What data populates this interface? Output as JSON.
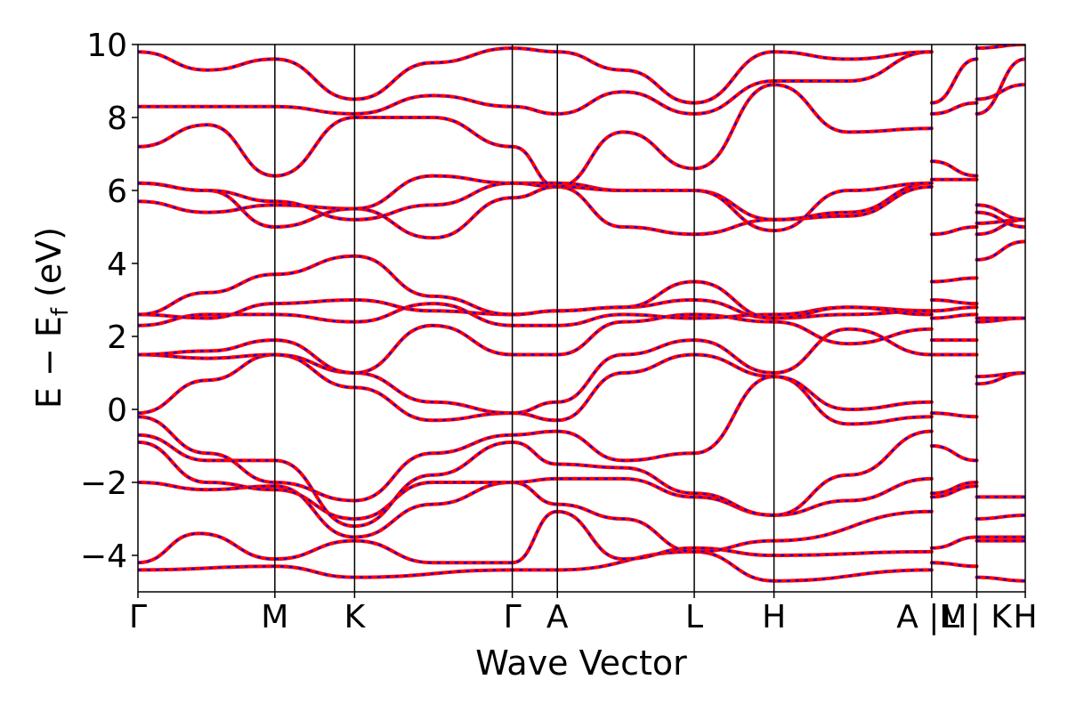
{
  "chart_data": {
    "type": "line",
    "xlabel": "Wave Vector",
    "ylabel": "E − E_f (eV)",
    "ylabel_parts": {
      "main": "E − E",
      "sub": "f",
      "unit": " (eV)"
    },
    "ylim": [
      -5,
      10
    ],
    "y_ticks": [
      {
        "value": 10,
        "label": "10"
      },
      {
        "value": 8,
        "label": "8"
      },
      {
        "value": 6,
        "label": "6"
      },
      {
        "value": 4,
        "label": "4"
      },
      {
        "value": 2,
        "label": "2"
      },
      {
        "value": 0,
        "label": "0"
      },
      {
        "value": -2,
        "label": "−2"
      },
      {
        "value": -4,
        "label": "−4"
      }
    ],
    "xlim": [
      0,
      5.12
    ],
    "kpoints": [
      {
        "label": "Γ",
        "x": 0.0
      },
      {
        "label": "M",
        "x": 0.79
      },
      {
        "label": "K",
        "x": 1.25
      },
      {
        "label": "Γ",
        "x": 2.16
      },
      {
        "label": "A",
        "x": 2.42
      },
      {
        "label": "L",
        "x": 3.21
      },
      {
        "label": "H",
        "x": 3.67
      },
      {
        "label": "A |M",
        "x": 4.58
      },
      {
        "label": "L | K",
        "x": 4.84
      },
      {
        "label": "H",
        "x": 5.12
      }
    ],
    "segments": [
      [
        0,
        0.79
      ],
      [
        0.79,
        1.25
      ],
      [
        1.25,
        2.16
      ],
      [
        2.16,
        2.42
      ],
      [
        2.42,
        3.21
      ],
      [
        3.21,
        3.67
      ],
      [
        3.67,
        4.58
      ],
      [
        4.58,
        4.84
      ],
      [
        4.84,
        5.12
      ]
    ],
    "series": [
      {
        "color": "#ff0000",
        "style": "solid"
      },
      {
        "color": "#0000ff",
        "style": "dashed"
      }
    ],
    "bands": [
      [
        [
          0,
          -4.4
        ],
        [
          0.79,
          -4.3
        ],
        [
          1.25,
          -4.6
        ],
        [
          2.16,
          -4.4
        ],
        [
          2.42,
          -4.4
        ],
        [
          3.21,
          -3.9
        ],
        [
          3.67,
          -4.7
        ],
        [
          4.58,
          -4.4
        ],
        [
          4.58,
          -4.2
        ],
        [
          4.84,
          -4.3
        ],
        [
          4.84,
          -4.6
        ],
        [
          5.12,
          -4.7
        ]
      ],
      [
        [
          0,
          -4.2
        ],
        [
          0.35,
          -3.4
        ],
        [
          0.79,
          -4.1
        ],
        [
          1.25,
          -3.6
        ],
        [
          1.7,
          -4.2
        ],
        [
          2.16,
          -4.2
        ],
        [
          2.42,
          -2.8
        ],
        [
          2.8,
          -4.1
        ],
        [
          3.21,
          -3.8
        ],
        [
          3.67,
          -4.0
        ],
        [
          4.58,
          -3.9
        ],
        [
          4.58,
          -3.8
        ],
        [
          4.84,
          -3.5
        ],
        [
          4.84,
          -3.6
        ],
        [
          5.12,
          -3.6
        ]
      ],
      [
        [
          0,
          -2.0
        ],
        [
          0.4,
          -2.2
        ],
        [
          0.79,
          -2.1
        ],
        [
          1.25,
          -3.5
        ],
        [
          1.7,
          -2.6
        ],
        [
          2.16,
          -2.0
        ],
        [
          2.42,
          -2.6
        ],
        [
          2.8,
          -3.0
        ],
        [
          3.21,
          -3.9
        ],
        [
          3.67,
          -3.6
        ],
        [
          4.58,
          -2.8
        ],
        [
          4.58,
          -2.4
        ],
        [
          4.84,
          -2.1
        ],
        [
          4.84,
          -3.5
        ],
        [
          5.12,
          -3.5
        ]
      ],
      [
        [
          0,
          -0.9
        ],
        [
          0.4,
          -2.0
        ],
        [
          0.79,
          -2.2
        ],
        [
          1.25,
          -3.0
        ],
        [
          1.7,
          -2.0
        ],
        [
          2.16,
          -2.0
        ],
        [
          2.42,
          -1.9
        ],
        [
          2.8,
          -1.9
        ],
        [
          3.21,
          -2.4
        ],
        [
          3.67,
          -2.9
        ],
        [
          4.1,
          -2.5
        ],
        [
          4.58,
          -1.9
        ],
        [
          4.58,
          -2.3
        ],
        [
          4.84,
          -2.0
        ],
        [
          4.84,
          -3.0
        ],
        [
          5.12,
          -2.9
        ]
      ],
      [
        [
          0,
          -0.7
        ],
        [
          0.4,
          -1.4
        ],
        [
          0.79,
          -1.4
        ],
        [
          1.25,
          -3.2
        ],
        [
          1.7,
          -1.8
        ],
        [
          2.16,
          -0.9
        ],
        [
          2.42,
          -1.5
        ],
        [
          2.8,
          -1.6
        ],
        [
          3.21,
          -2.3
        ],
        [
          3.67,
          -2.9
        ],
        [
          4.1,
          -1.8
        ],
        [
          4.58,
          -0.6
        ],
        [
          4.58,
          -1.0
        ],
        [
          4.84,
          -1.4
        ],
        [
          4.84,
          -2.4
        ],
        [
          5.12,
          -2.4
        ]
      ],
      [
        [
          0,
          -0.2
        ],
        [
          0.4,
          -1.2
        ],
        [
          0.79,
          -2.0
        ],
        [
          1.25,
          -2.5
        ],
        [
          1.7,
          -1.2
        ],
        [
          2.16,
          -0.7
        ],
        [
          2.42,
          -0.6
        ],
        [
          2.8,
          -1.4
        ],
        [
          3.21,
          -1.2
        ],
        [
          3.67,
          0.9
        ],
        [
          4.1,
          -0.4
        ],
        [
          4.58,
          -0.2
        ],
        [
          4.58,
          -0.1
        ],
        [
          4.84,
          -0.2
        ],
        [
          4.84,
          0.7
        ],
        [
          5.12,
          1.0
        ]
      ],
      [
        [
          0,
          -0.1
        ],
        [
          0.4,
          0.8
        ],
        [
          0.79,
          1.5
        ],
        [
          1.25,
          0.6
        ],
        [
          1.7,
          -0.3
        ],
        [
          2.16,
          -0.1
        ],
        [
          2.42,
          -0.3
        ],
        [
          2.8,
          1.0
        ],
        [
          3.21,
          1.5
        ],
        [
          3.67,
          0.9
        ],
        [
          4.1,
          0.0
        ],
        [
          4.58,
          0.2
        ],
        [
          4.58,
          1.5
        ],
        [
          4.84,
          1.5
        ],
        [
          4.84,
          0.9
        ],
        [
          5.12,
          1.0
        ]
      ],
      [
        [
          0,
          1.5
        ],
        [
          0.4,
          1.4
        ],
        [
          0.79,
          1.5
        ],
        [
          1.25,
          1.0
        ],
        [
          1.7,
          0.2
        ],
        [
          2.16,
          -0.1
        ],
        [
          2.42,
          0.2
        ],
        [
          2.8,
          1.5
        ],
        [
          3.21,
          1.9
        ],
        [
          3.67,
          1.0
        ],
        [
          4.1,
          2.2
        ],
        [
          4.58,
          1.5
        ],
        [
          4.58,
          1.9
        ],
        [
          4.84,
          1.9
        ],
        [
          4.84,
          2.4
        ],
        [
          5.12,
          2.5
        ]
      ],
      [
        [
          0,
          1.5
        ],
        [
          0.4,
          1.6
        ],
        [
          0.79,
          1.9
        ],
        [
          1.25,
          1.0
        ],
        [
          1.7,
          2.3
        ],
        [
          2.16,
          1.5
        ],
        [
          2.42,
          1.5
        ],
        [
          2.8,
          2.4
        ],
        [
          3.21,
          2.6
        ],
        [
          3.67,
          2.4
        ],
        [
          4.1,
          1.8
        ],
        [
          4.58,
          2.2
        ],
        [
          4.58,
          2.5
        ],
        [
          4.84,
          2.6
        ],
        [
          4.84,
          2.5
        ],
        [
          5.12,
          2.5
        ]
      ],
      [
        [
          0,
          2.3
        ],
        [
          0.4,
          2.6
        ],
        [
          0.79,
          2.6
        ],
        [
          1.25,
          2.4
        ],
        [
          1.7,
          2.9
        ],
        [
          2.16,
          2.3
        ],
        [
          2.42,
          2.3
        ],
        [
          2.8,
          2.6
        ],
        [
          3.21,
          2.5
        ],
        [
          3.67,
          2.6
        ],
        [
          4.1,
          2.8
        ],
        [
          4.58,
          2.7
        ],
        [
          4.58,
          2.7
        ],
        [
          4.84,
          2.8
        ],
        [
          4.84,
          4.1
        ],
        [
          5.12,
          4.6
        ]
      ],
      [
        [
          0,
          2.6
        ],
        [
          0.4,
          2.5
        ],
        [
          0.79,
          2.9
        ],
        [
          1.25,
          3.0
        ],
        [
          1.7,
          2.7
        ],
        [
          2.16,
          2.6
        ],
        [
          2.42,
          2.7
        ],
        [
          2.8,
          2.8
        ],
        [
          3.21,
          3.0
        ],
        [
          3.67,
          2.5
        ],
        [
          4.1,
          2.6
        ],
        [
          4.58,
          2.7
        ],
        [
          4.58,
          3.0
        ],
        [
          4.84,
          2.9
        ],
        [
          4.84,
          4.8
        ],
        [
          5.12,
          5.2
        ]
      ],
      [
        [
          0,
          2.6
        ],
        [
          0.4,
          3.2
        ],
        [
          0.79,
          3.7
        ],
        [
          1.25,
          4.2
        ],
        [
          1.7,
          3.1
        ],
        [
          2.16,
          2.6
        ],
        [
          2.42,
          2.7
        ],
        [
          2.8,
          2.8
        ],
        [
          3.21,
          3.5
        ],
        [
          3.67,
          2.5
        ],
        [
          4.1,
          2.8
        ],
        [
          4.58,
          2.6
        ],
        [
          4.58,
          3.5
        ],
        [
          4.84,
          3.6
        ],
        [
          4.84,
          5.1
        ],
        [
          5.12,
          5.2
        ]
      ],
      [
        [
          0,
          5.7
        ],
        [
          0.4,
          5.4
        ],
        [
          0.79,
          5.6
        ],
        [
          1.25,
          5.5
        ],
        [
          1.7,
          4.7
        ],
        [
          2.16,
          5.8
        ],
        [
          2.42,
          6.1
        ],
        [
          2.8,
          5.0
        ],
        [
          3.21,
          4.8
        ],
        [
          3.67,
          5.2
        ],
        [
          4.1,
          5.3
        ],
        [
          4.58,
          6.1
        ],
        [
          4.58,
          4.8
        ],
        [
          4.84,
          5.0
        ],
        [
          4.84,
          5.6
        ],
        [
          5.12,
          5.2
        ]
      ],
      [
        [
          0,
          6.2
        ],
        [
          0.4,
          6.0
        ],
        [
          0.79,
          5.0
        ],
        [
          1.25,
          5.5
        ],
        [
          1.7,
          6.4
        ],
        [
          2.16,
          6.2
        ],
        [
          2.42,
          6.2
        ],
        [
          2.8,
          6.0
        ],
        [
          3.21,
          6.0
        ],
        [
          3.67,
          5.2
        ],
        [
          4.1,
          5.4
        ],
        [
          4.58,
          6.2
        ],
        [
          4.58,
          6.3
        ],
        [
          4.84,
          6.3
        ],
        [
          4.84,
          5.4
        ],
        [
          5.12,
          5.0
        ]
      ],
      [
        [
          0,
          6.2
        ],
        [
          0.4,
          6.0
        ],
        [
          0.79,
          5.7
        ],
        [
          1.25,
          5.2
        ],
        [
          1.7,
          5.6
        ],
        [
          2.16,
          6.2
        ],
        [
          2.42,
          6.1
        ],
        [
          2.8,
          6.0
        ],
        [
          3.21,
          6.0
        ],
        [
          3.67,
          4.9
        ],
        [
          4.1,
          6.0
        ],
        [
          4.58,
          6.2
        ],
        [
          4.58,
          6.8
        ],
        [
          4.84,
          6.4
        ],
        [
          4.84,
          8.5
        ],
        [
          5.12,
          8.9
        ]
      ],
      [
        [
          0,
          7.2
        ],
        [
          0.4,
          7.8
        ],
        [
          0.79,
          6.4
        ],
        [
          1.25,
          8.0
        ],
        [
          1.7,
          8.0
        ],
        [
          2.16,
          7.2
        ],
        [
          2.42,
          6.1
        ],
        [
          2.8,
          7.6
        ],
        [
          3.21,
          6.6
        ],
        [
          3.67,
          8.9
        ],
        [
          4.1,
          7.6
        ],
        [
          4.58,
          7.7
        ],
        [
          4.58,
          8.1
        ],
        [
          4.84,
          8.4
        ],
        [
          4.84,
          8.1
        ],
        [
          5.12,
          9.6
        ]
      ],
      [
        [
          0,
          8.3
        ],
        [
          0.4,
          8.3
        ],
        [
          0.79,
          8.3
        ],
        [
          1.25,
          8.1
        ],
        [
          1.7,
          8.6
        ],
        [
          2.16,
          8.3
        ],
        [
          2.42,
          8.1
        ],
        [
          2.8,
          8.7
        ],
        [
          3.21,
          8.1
        ],
        [
          3.67,
          9.0
        ],
        [
          4.1,
          9.0
        ],
        [
          4.58,
          9.8
        ],
        [
          4.58,
          8.4
        ],
        [
          4.84,
          9.6
        ],
        [
          4.84,
          9.9
        ],
        [
          5.12,
          10.0
        ]
      ],
      [
        [
          0,
          9.8
        ],
        [
          0.4,
          9.3
        ],
        [
          0.79,
          9.6
        ],
        [
          1.25,
          8.5
        ],
        [
          1.7,
          9.5
        ],
        [
          2.16,
          9.9
        ],
        [
          2.42,
          9.8
        ],
        [
          2.8,
          9.3
        ],
        [
          3.21,
          8.4
        ],
        [
          3.67,
          9.8
        ],
        [
          4.1,
          9.6
        ],
        [
          4.58,
          9.8
        ]
      ]
    ]
  }
}
